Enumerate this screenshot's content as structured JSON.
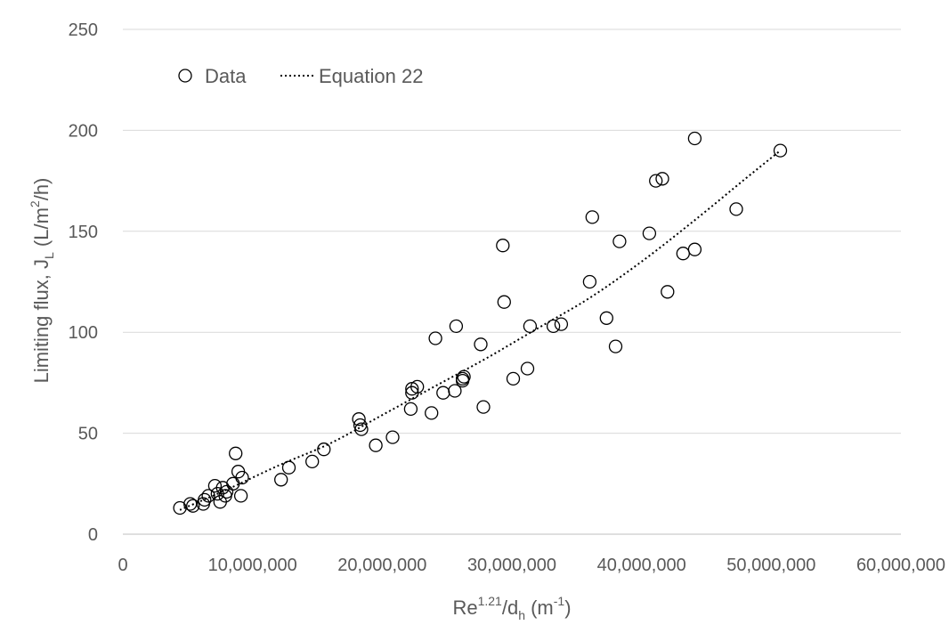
{
  "chart_data": {
    "type": "scatter",
    "xlabel": {
      "base": "Re",
      "sup": "1.21",
      "mid": "/d",
      "sub": "h",
      "unit_pre": " (m",
      "unit_sup": "-1",
      "unit_post": ")"
    },
    "ylabel": {
      "pre": "Limiting flux, J",
      "sub": "L",
      "unit_pre": " (L/m",
      "unit_sup": "2",
      "unit_post": "/h)"
    },
    "xlim": [
      0,
      60000000
    ],
    "ylim": [
      0,
      250
    ],
    "x_ticks": [
      0,
      10000000,
      20000000,
      30000000,
      40000000,
      50000000,
      60000000
    ],
    "x_tick_labels": [
      "0",
      "10,000,000",
      "20,000,000",
      "30,000,000",
      "40,000,000",
      "50,000,000",
      "60,000,000"
    ],
    "y_ticks": [
      0,
      50,
      100,
      150,
      200,
      250
    ],
    "y_tick_labels": [
      "0",
      "50",
      "100",
      "150",
      "200",
      "250"
    ],
    "grid": "horizontal",
    "legend_position": "top-left",
    "series": [
      {
        "name": "Data",
        "marker": "open-circle",
        "x": [
          4400000,
          5200000,
          5400000,
          6200000,
          6300000,
          6600000,
          7100000,
          7300000,
          7500000,
          7700000,
          7900000,
          8000000,
          8500000,
          8700000,
          8900000,
          9100000,
          9200000,
          12200000,
          12800000,
          14600000,
          15500000,
          18200000,
          18300000,
          18400000,
          19500000,
          20800000,
          22200000,
          22300000,
          22300000,
          22700000,
          23800000,
          24100000,
          24700000,
          25600000,
          25700000,
          26200000,
          26300000,
          26200000,
          27600000,
          27800000,
          29300000,
          29400000,
          30100000,
          31200000,
          31400000,
          33200000,
          33800000,
          36000000,
          36200000,
          37300000,
          38000000,
          38300000,
          40600000,
          41100000,
          41600000,
          42000000,
          43200000,
          44100000,
          44100000,
          47300000,
          50700000
        ],
        "y": [
          13,
          15,
          14,
          15,
          17,
          19,
          24,
          20,
          16,
          23,
          19,
          21,
          25,
          40,
          31,
          19,
          28,
          27,
          33,
          36,
          42,
          57,
          54,
          52,
          44,
          48,
          62,
          72,
          70,
          73,
          60,
          97,
          70,
          71,
          103,
          76,
          78,
          77,
          94,
          63,
          143,
          115,
          77,
          82,
          103,
          103,
          104,
          125,
          157,
          107,
          93,
          145,
          149,
          175,
          176,
          120,
          139,
          196,
          141,
          161,
          190
        ]
      },
      {
        "name": "Equation 22",
        "line_style": "dotted",
        "x": [
          4400000,
          8000000,
          12000000,
          16000000,
          20000000,
          24000000,
          28000000,
          32000000,
          36000000,
          40000000,
          44000000,
          48000000,
          50700000
        ],
        "y": [
          12,
          22,
          34,
          45,
          59,
          73,
          87,
          102,
          117,
          135,
          155,
          176,
          190
        ]
      }
    ]
  }
}
